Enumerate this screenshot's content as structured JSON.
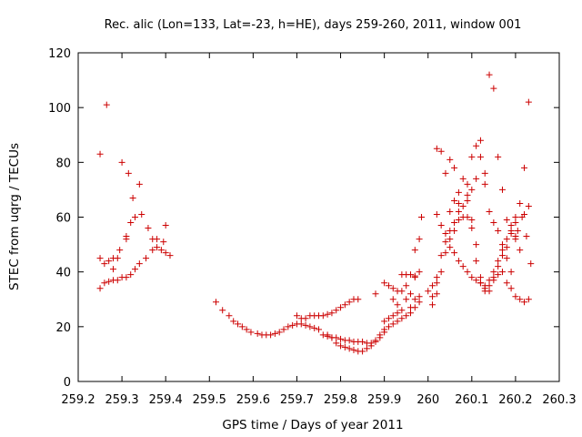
{
  "chart_data": {
    "type": "scatter",
    "title": "Rec. alic (Lon=133, Lat=-23, h=HE), days 259-260, 2011, window 001",
    "xlabel": "GPS time / Days of year 2011",
    "ylabel": "STEC from uqrg / TECUs",
    "xlim": [
      259.2,
      260.3
    ],
    "ylim": [
      0,
      120
    ],
    "xticks": [
      "259.2",
      "259.3",
      "259.4",
      "259.5",
      "259.6",
      "259.7",
      "259.8",
      "259.9",
      "260",
      "260.1",
      "260.2",
      "260.3"
    ],
    "yticks": [
      "0",
      "20",
      "40",
      "60",
      "80",
      "100",
      "120"
    ],
    "grid": false,
    "marker": "plus",
    "color": "#cc0000",
    "points": [
      [
        259.25,
        83
      ],
      [
        259.265,
        101
      ],
      [
        259.25,
        34
      ],
      [
        259.26,
        36
      ],
      [
        259.27,
        36.5
      ],
      [
        259.28,
        37
      ],
      [
        259.29,
        37
      ],
      [
        259.3,
        38
      ],
      [
        259.31,
        38
      ],
      [
        259.32,
        39
      ],
      [
        259.33,
        41
      ],
      [
        259.34,
        43
      ],
      [
        259.355,
        45
      ],
      [
        259.37,
        48
      ],
      [
        259.38,
        49
      ],
      [
        259.39,
        48
      ],
      [
        259.4,
        47
      ],
      [
        259.41,
        46
      ],
      [
        259.25,
        45
      ],
      [
        259.26,
        43
      ],
      [
        259.27,
        44
      ],
      [
        259.28,
        45
      ],
      [
        259.29,
        45
      ],
      [
        259.295,
        48
      ],
      [
        259.31,
        52
      ],
      [
        259.31,
        53
      ],
      [
        259.32,
        58
      ],
      [
        259.33,
        60
      ],
      [
        259.345,
        61
      ],
      [
        259.36,
        56
      ],
      [
        259.37,
        52
      ],
      [
        259.38,
        52
      ],
      [
        259.395,
        51
      ],
      [
        259.4,
        57
      ],
      [
        259.3,
        80
      ],
      [
        259.315,
        76
      ],
      [
        259.325,
        67
      ],
      [
        259.34,
        72
      ],
      [
        259.28,
        41
      ],
      [
        259.515,
        29
      ],
      [
        259.53,
        26
      ],
      [
        259.545,
        24
      ],
      [
        259.555,
        22
      ],
      [
        259.565,
        21
      ],
      [
        259.575,
        20
      ],
      [
        259.585,
        19
      ],
      [
        259.595,
        18
      ],
      [
        259.61,
        17.5
      ],
      [
        259.62,
        17
      ],
      [
        259.63,
        17
      ],
      [
        259.64,
        17
      ],
      [
        259.65,
        17.5
      ],
      [
        259.66,
        18
      ],
      [
        259.67,
        19
      ],
      [
        259.68,
        20
      ],
      [
        259.69,
        20.5
      ],
      [
        259.7,
        21
      ],
      [
        259.71,
        21
      ],
      [
        259.72,
        20.5
      ],
      [
        259.73,
        20
      ],
      [
        259.74,
        19.5
      ],
      [
        259.75,
        19
      ],
      [
        259.76,
        17
      ],
      [
        259.77,
        16.5
      ],
      [
        259.78,
        16
      ],
      [
        259.79,
        16
      ],
      [
        259.8,
        15.5
      ],
      [
        259.81,
        15
      ],
      [
        259.82,
        15
      ],
      [
        259.83,
        14.5
      ],
      [
        259.84,
        14.5
      ],
      [
        259.85,
        14.5
      ],
      [
        259.86,
        14
      ],
      [
        259.87,
        14
      ],
      [
        259.88,
        14.5
      ],
      [
        259.7,
        24
      ],
      [
        259.71,
        23
      ],
      [
        259.72,
        23
      ],
      [
        259.73,
        24
      ],
      [
        259.74,
        24
      ],
      [
        259.75,
        24
      ],
      [
        259.76,
        24
      ],
      [
        259.77,
        24.5
      ],
      [
        259.78,
        25
      ],
      [
        259.79,
        26
      ],
      [
        259.8,
        27
      ],
      [
        259.81,
        28
      ],
      [
        259.82,
        29
      ],
      [
        259.83,
        30
      ],
      [
        259.84,
        30
      ],
      [
        259.77,
        17
      ],
      [
        259.78,
        16
      ],
      [
        259.79,
        14
      ],
      [
        259.8,
        13
      ],
      [
        259.81,
        12.5
      ],
      [
        259.82,
        12
      ],
      [
        259.83,
        11.5
      ],
      [
        259.84,
        11
      ],
      [
        259.85,
        11
      ],
      [
        259.86,
        12
      ],
      [
        259.87,
        13
      ],
      [
        259.88,
        15
      ],
      [
        259.89,
        17
      ],
      [
        259.9,
        19
      ],
      [
        259.91,
        20
      ],
      [
        259.92,
        21
      ],
      [
        259.93,
        22
      ],
      [
        259.94,
        23
      ],
      [
        259.95,
        24
      ],
      [
        259.96,
        25
      ],
      [
        259.97,
        27
      ],
      [
        259.98,
        29
      ],
      [
        259.88,
        32
      ],
      [
        259.89,
        16
      ],
      [
        259.9,
        18
      ],
      [
        259.9,
        22
      ],
      [
        259.91,
        23
      ],
      [
        259.92,
        24
      ],
      [
        259.92,
        30
      ],
      [
        259.93,
        28
      ],
      [
        259.93,
        25
      ],
      [
        259.94,
        26
      ],
      [
        259.94,
        33
      ],
      [
        259.95,
        35
      ],
      [
        259.95,
        30
      ],
      [
        259.96,
        32
      ],
      [
        259.96,
        27
      ],
      [
        259.97,
        30
      ],
      [
        259.97,
        38
      ],
      [
        259.98,
        40
      ],
      [
        259.98,
        31
      ],
      [
        259.9,
        36
      ],
      [
        259.91,
        35
      ],
      [
        259.92,
        34
      ],
      [
        259.93,
        33
      ],
      [
        259.94,
        39
      ],
      [
        259.95,
        39
      ],
      [
        259.96,
        39
      ],
      [
        259.97,
        48
      ],
      [
        259.98,
        52
      ],
      [
        259.985,
        60
      ],
      [
        259.97,
        38.5
      ],
      [
        260.02,
        85
      ],
      [
        260.03,
        84
      ],
      [
        260.04,
        76
      ],
      [
        260.05,
        81
      ],
      [
        260.06,
        78
      ],
      [
        260.07,
        69
      ],
      [
        260.08,
        74
      ],
      [
        260.09,
        72
      ],
      [
        260.1,
        82
      ],
      [
        260.11,
        86
      ],
      [
        260.12,
        88
      ],
      [
        260.13,
        72
      ],
      [
        260.14,
        112
      ],
      [
        260.15,
        107
      ],
      [
        260.16,
        82
      ],
      [
        260.17,
        70
      ],
      [
        260.18,
        59
      ],
      [
        260.19,
        55
      ],
      [
        260.2,
        52
      ],
      [
        260.21,
        48
      ],
      [
        260.22,
        78
      ],
      [
        260.23,
        102
      ],
      [
        260.01,
        28
      ],
      [
        260.01,
        31
      ],
      [
        260.02,
        32
      ],
      [
        260.02,
        36
      ],
      [
        260.03,
        40
      ],
      [
        260.03,
        46
      ],
      [
        260.04,
        47
      ],
      [
        260.04,
        51
      ],
      [
        260.05,
        52
      ],
      [
        260.05,
        55
      ],
      [
        260.06,
        55
      ],
      [
        260.06,
        58
      ],
      [
        260.07,
        59
      ],
      [
        260.07,
        62
      ],
      [
        260.08,
        60
      ],
      [
        260.08,
        64
      ],
      [
        260.09,
        66
      ],
      [
        260.09,
        60
      ],
      [
        260.1,
        59
      ],
      [
        260.1,
        56
      ],
      [
        260.11,
        50
      ],
      [
        260.11,
        44
      ],
      [
        260.12,
        38
      ],
      [
        260.12,
        36
      ],
      [
        260.13,
        34
      ],
      [
        260.13,
        33
      ],
      [
        260.14,
        33
      ],
      [
        260.14,
        35
      ],
      [
        260.15,
        37
      ],
      [
        260.15,
        40
      ],
      [
        260.16,
        42
      ],
      [
        260.16,
        44
      ],
      [
        260.17,
        46
      ],
      [
        260.17,
        48
      ],
      [
        260.18,
        49
      ],
      [
        260.18,
        52
      ],
      [
        260.19,
        54
      ],
      [
        260.19,
        57
      ],
      [
        260.2,
        58
      ],
      [
        260.2,
        60
      ],
      [
        260.02,
        61
      ],
      [
        260.03,
        57
      ],
      [
        260.04,
        54
      ],
      [
        260.05,
        49
      ],
      [
        260.06,
        47
      ],
      [
        260.07,
        44
      ],
      [
        260.08,
        42
      ],
      [
        260.09,
        40
      ],
      [
        260.1,
        38
      ],
      [
        260.11,
        37
      ],
      [
        260.12,
        36
      ],
      [
        260.13,
        35
      ],
      [
        260.14,
        37
      ],
      [
        260.15,
        38
      ],
      [
        260.16,
        39
      ],
      [
        260.17,
        40
      ],
      [
        260.18,
        36
      ],
      [
        260.19,
        34
      ],
      [
        260.2,
        31
      ],
      [
        260.21,
        30
      ],
      [
        260.22,
        29
      ],
      [
        260.23,
        30
      ],
      [
        260.235,
        43
      ],
      [
        260.23,
        64
      ],
      [
        260.22,
        61
      ],
      [
        260.21,
        65
      ],
      [
        260.2,
        53
      ],
      [
        260.0,
        33
      ],
      [
        260.01,
        35
      ],
      [
        260.02,
        38
      ],
      [
        260.05,
        62
      ],
      [
        260.06,
        66
      ],
      [
        260.07,
        65
      ],
      [
        260.09,
        68
      ],
      [
        260.1,
        70
      ],
      [
        260.11,
        74
      ],
      [
        260.12,
        82
      ],
      [
        260.13,
        76
      ],
      [
        260.14,
        62
      ],
      [
        260.15,
        58
      ],
      [
        260.16,
        55
      ],
      [
        260.17,
        50
      ],
      [
        260.18,
        45
      ],
      [
        260.19,
        40
      ],
      [
        260.205,
        55
      ],
      [
        260.215,
        60
      ],
      [
        260.225,
        53
      ]
    ]
  }
}
